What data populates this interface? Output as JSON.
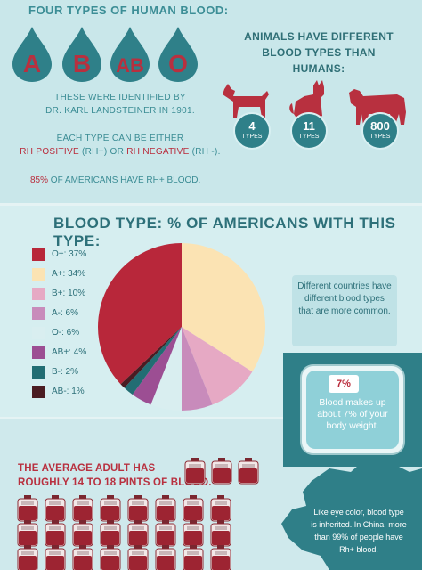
{
  "top": {
    "title": "FOUR TYPES OF HUMAN BLOOD:",
    "blood_types": [
      "A",
      "B",
      "AB",
      "O"
    ],
    "identified_line": "THESE WERE IDENTIFIED BY",
    "identified_name": "DR. KARL LANDSTEINER IN 1901.",
    "rh_line1": "EACH TYPE CAN BE EITHER",
    "rh_positive": "RH POSITIVE",
    "rh_positive_abbr": " (RH+) OR ",
    "rh_negative": "RH NEGATIVE",
    "rh_negative_abbr": " (RH -).",
    "pct_value": "85%",
    "pct_text": " OF AMERICANS HAVE RH+ BLOOD.",
    "animals_title_1": "ANIMALS HAVE DIFFERENT",
    "animals_title_2": "BLOOD TYPES THAN HUMANS:",
    "animals": [
      {
        "name": "dog",
        "count": "4",
        "label": "TYPES"
      },
      {
        "name": "cat",
        "count": "11",
        "label": "TYPES"
      },
      {
        "name": "cow",
        "count": "800",
        "label": "TYPES"
      }
    ]
  },
  "pie_section": {
    "title": "BLOOD TYPE:  % OF AMERICANS WITH THIS TYPE:",
    "countries_note": "Different countries have different blood types that are more common."
  },
  "chart_data": {
    "type": "pie",
    "title": "BLOOD TYPE:  % OF AMERICANS WITH THIS TYPE:",
    "slices": [
      {
        "label": "O+: 37%",
        "name": "O+",
        "value": 37,
        "color": "#b8273a"
      },
      {
        "label": "A+: 34%",
        "name": "A+",
        "value": 34,
        "color": "#fbe3b3"
      },
      {
        "label": "B+: 10%",
        "name": "B+",
        "value": 10,
        "color": "#e6a9c4"
      },
      {
        "label": "A-: 6%",
        "name": "A-",
        "value": 6,
        "color": "#c88bbb"
      },
      {
        "label": "O-: 6%",
        "name": "O-",
        "value": 6,
        "color": "#d9eef0"
      },
      {
        "label": "AB+: 4%",
        "name": "AB+",
        "value": 4,
        "color": "#9c4e93"
      },
      {
        "label": "B-: 2%",
        "name": "B-",
        "value": 2,
        "color": "#226d73"
      },
      {
        "label": "AB-: 1%",
        "name": "AB-",
        "value": 1,
        "color": "#4a1c22"
      }
    ],
    "legend_position": "left"
  },
  "scale": {
    "pct": "7%",
    "text": "Blood makes up about 7% of your body weight."
  },
  "bottom": {
    "adult_line1": "THE AVERAGE ADULT HAS",
    "adult_line2": "ROUGHLY 14 TO 18 PINTS OF BLOOD.",
    "china_text": "Like eye color, blood type is inherited. In China, more than 99% of people have Rh+ blood."
  },
  "colors": {
    "accent_red": "#b92a3a",
    "teal": "#2f8089",
    "background": "#d3ecef"
  }
}
